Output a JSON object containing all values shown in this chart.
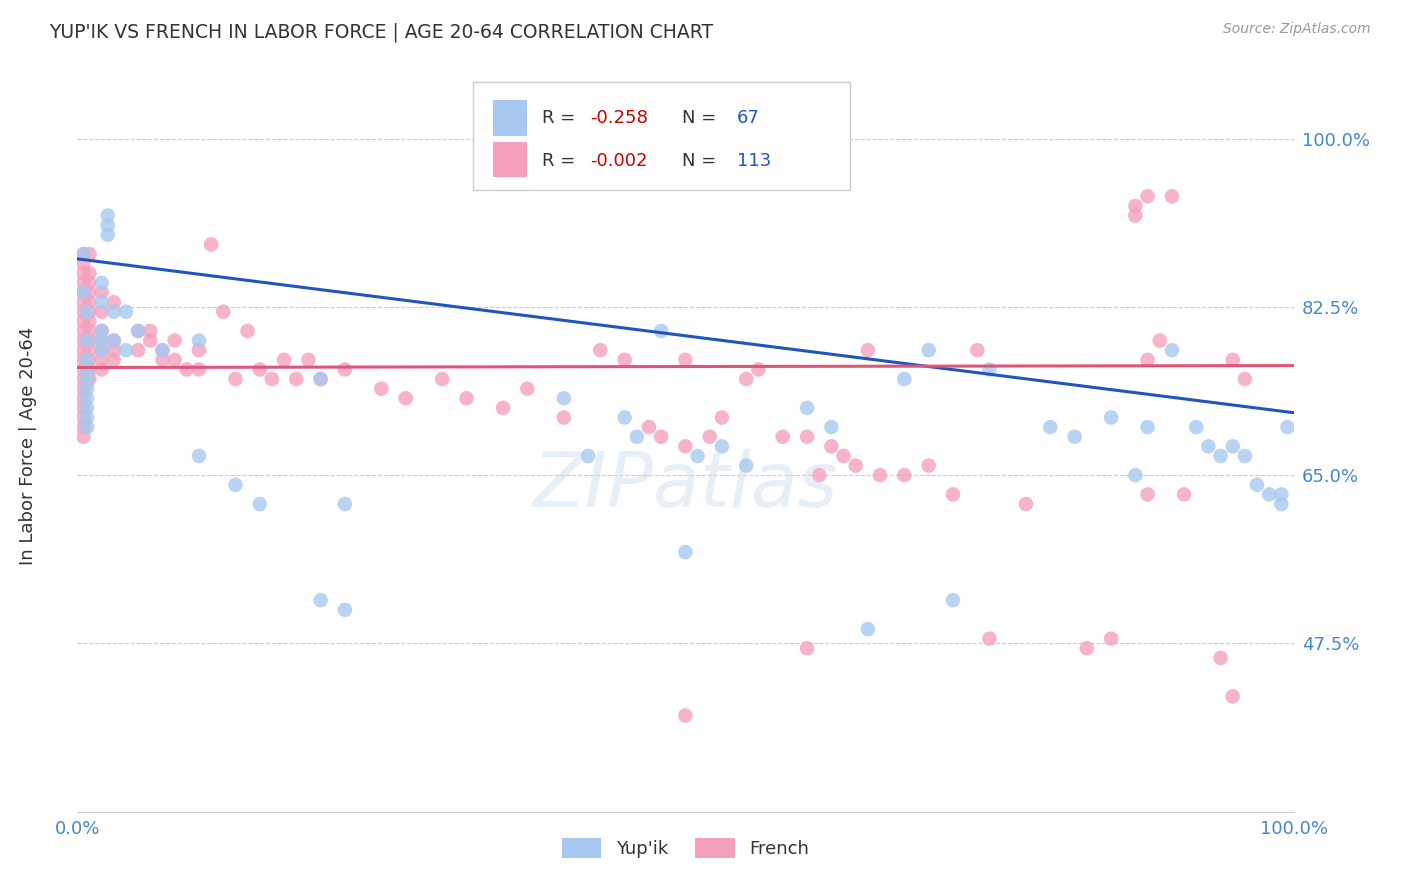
{
  "title": "YUP'IK VS FRENCH IN LABOR FORCE | AGE 20-64 CORRELATION CHART",
  "source": "Source: ZipAtlas.com",
  "ylabel": "In Labor Force | Age 20-64",
  "xlim": [
    0.0,
    1.0
  ],
  "ylim": [
    0.3,
    1.07
  ],
  "yticks": [
    0.475,
    0.65,
    0.825,
    1.0
  ],
  "ytick_labels": [
    "47.5%",
    "65.0%",
    "82.5%",
    "100.0%"
  ],
  "xtick_labels": [
    "0.0%",
    "100.0%"
  ],
  "xticks": [
    0.0,
    1.0
  ],
  "grid_color": "#cccccc",
  "bg_color": "#ffffff",
  "blue_color": "#a8c8f0",
  "pink_color": "#f4a0bc",
  "line_blue": "#2255bb",
  "line_pink": "#e05575",
  "watermark": "ZIPatlas",
  "label_color": "#4488cc",
  "text_dark": "#333333",
  "R_color": "#cc0000",
  "N_color": "#2255bb",
  "blue_scatter": [
    [
      0.005,
      0.88
    ],
    [
      0.005,
      0.84
    ],
    [
      0.008,
      0.82
    ],
    [
      0.008,
      0.79
    ],
    [
      0.008,
      0.77
    ],
    [
      0.008,
      0.76
    ],
    [
      0.008,
      0.75
    ],
    [
      0.008,
      0.74
    ],
    [
      0.008,
      0.73
    ],
    [
      0.008,
      0.72
    ],
    [
      0.008,
      0.71
    ],
    [
      0.008,
      0.7
    ],
    [
      0.02,
      0.85
    ],
    [
      0.02,
      0.83
    ],
    [
      0.02,
      0.8
    ],
    [
      0.02,
      0.79
    ],
    [
      0.02,
      0.78
    ],
    [
      0.025,
      0.92
    ],
    [
      0.025,
      0.91
    ],
    [
      0.025,
      0.9
    ],
    [
      0.03,
      0.82
    ],
    [
      0.03,
      0.79
    ],
    [
      0.04,
      0.82
    ],
    [
      0.04,
      0.78
    ],
    [
      0.05,
      0.8
    ],
    [
      0.07,
      0.78
    ],
    [
      0.1,
      0.79
    ],
    [
      0.1,
      0.67
    ],
    [
      0.13,
      0.64
    ],
    [
      0.15,
      0.62
    ],
    [
      0.2,
      0.75
    ],
    [
      0.22,
      0.62
    ],
    [
      0.4,
      0.73
    ],
    [
      0.42,
      0.67
    ],
    [
      0.45,
      0.71
    ],
    [
      0.46,
      0.69
    ],
    [
      0.48,
      0.8
    ],
    [
      0.5,
      0.57
    ],
    [
      0.51,
      0.67
    ],
    [
      0.53,
      0.68
    ],
    [
      0.55,
      0.66
    ],
    [
      0.6,
      0.72
    ],
    [
      0.62,
      0.7
    ],
    [
      0.65,
      0.49
    ],
    [
      0.68,
      0.75
    ],
    [
      0.7,
      0.78
    ],
    [
      0.72,
      0.52
    ],
    [
      0.75,
      0.76
    ],
    [
      0.8,
      0.7
    ],
    [
      0.82,
      0.69
    ],
    [
      0.85,
      0.71
    ],
    [
      0.87,
      0.65
    ],
    [
      0.88,
      0.7
    ],
    [
      0.9,
      0.78
    ],
    [
      0.92,
      0.7
    ],
    [
      0.93,
      0.68
    ],
    [
      0.94,
      0.67
    ],
    [
      0.95,
      0.68
    ],
    [
      0.96,
      0.67
    ],
    [
      0.97,
      0.64
    ],
    [
      0.98,
      0.63
    ],
    [
      0.99,
      0.63
    ],
    [
      0.99,
      0.62
    ],
    [
      0.995,
      0.7
    ],
    [
      0.2,
      0.52
    ],
    [
      0.22,
      0.51
    ]
  ],
  "pink_scatter": [
    [
      0.005,
      0.88
    ],
    [
      0.005,
      0.87
    ],
    [
      0.005,
      0.86
    ],
    [
      0.005,
      0.85
    ],
    [
      0.005,
      0.84
    ],
    [
      0.005,
      0.83
    ],
    [
      0.005,
      0.82
    ],
    [
      0.005,
      0.81
    ],
    [
      0.005,
      0.8
    ],
    [
      0.005,
      0.79
    ],
    [
      0.005,
      0.78
    ],
    [
      0.005,
      0.77
    ],
    [
      0.005,
      0.76
    ],
    [
      0.005,
      0.75
    ],
    [
      0.005,
      0.74
    ],
    [
      0.005,
      0.73
    ],
    [
      0.005,
      0.72
    ],
    [
      0.005,
      0.71
    ],
    [
      0.005,
      0.7
    ],
    [
      0.005,
      0.69
    ],
    [
      0.01,
      0.88
    ],
    [
      0.01,
      0.86
    ],
    [
      0.01,
      0.85
    ],
    [
      0.01,
      0.84
    ],
    [
      0.01,
      0.83
    ],
    [
      0.01,
      0.82
    ],
    [
      0.01,
      0.81
    ],
    [
      0.01,
      0.8
    ],
    [
      0.01,
      0.79
    ],
    [
      0.01,
      0.78
    ],
    [
      0.01,
      0.77
    ],
    [
      0.01,
      0.76
    ],
    [
      0.01,
      0.75
    ],
    [
      0.02,
      0.84
    ],
    [
      0.02,
      0.82
    ],
    [
      0.02,
      0.8
    ],
    [
      0.02,
      0.79
    ],
    [
      0.02,
      0.78
    ],
    [
      0.02,
      0.77
    ],
    [
      0.02,
      0.76
    ],
    [
      0.03,
      0.83
    ],
    [
      0.03,
      0.79
    ],
    [
      0.03,
      0.78
    ],
    [
      0.03,
      0.77
    ],
    [
      0.05,
      0.8
    ],
    [
      0.05,
      0.78
    ],
    [
      0.06,
      0.8
    ],
    [
      0.06,
      0.79
    ],
    [
      0.07,
      0.78
    ],
    [
      0.07,
      0.77
    ],
    [
      0.08,
      0.79
    ],
    [
      0.08,
      0.77
    ],
    [
      0.09,
      0.76
    ],
    [
      0.1,
      0.78
    ],
    [
      0.1,
      0.76
    ],
    [
      0.11,
      0.89
    ],
    [
      0.12,
      0.82
    ],
    [
      0.13,
      0.75
    ],
    [
      0.14,
      0.8
    ],
    [
      0.15,
      0.76
    ],
    [
      0.16,
      0.75
    ],
    [
      0.17,
      0.77
    ],
    [
      0.18,
      0.75
    ],
    [
      0.19,
      0.77
    ],
    [
      0.2,
      0.75
    ],
    [
      0.22,
      0.76
    ],
    [
      0.25,
      0.74
    ],
    [
      0.27,
      0.73
    ],
    [
      0.3,
      0.75
    ],
    [
      0.32,
      0.73
    ],
    [
      0.35,
      0.72
    ],
    [
      0.37,
      0.74
    ],
    [
      0.4,
      0.71
    ],
    [
      0.43,
      0.78
    ],
    [
      0.45,
      0.77
    ],
    [
      0.47,
      0.7
    ],
    [
      0.48,
      0.69
    ],
    [
      0.5,
      0.68
    ],
    [
      0.5,
      0.77
    ],
    [
      0.52,
      0.69
    ],
    [
      0.53,
      0.71
    ],
    [
      0.55,
      0.75
    ],
    [
      0.56,
      0.76
    ],
    [
      0.58,
      0.69
    ],
    [
      0.6,
      0.69
    ],
    [
      0.61,
      0.65
    ],
    [
      0.62,
      0.68
    ],
    [
      0.63,
      0.67
    ],
    [
      0.64,
      0.66
    ],
    [
      0.65,
      0.78
    ],
    [
      0.66,
      0.65
    ],
    [
      0.68,
      0.65
    ],
    [
      0.7,
      0.66
    ],
    [
      0.72,
      0.63
    ],
    [
      0.74,
      0.78
    ],
    [
      0.75,
      0.48
    ],
    [
      0.78,
      0.62
    ],
    [
      0.83,
      0.47
    ],
    [
      0.85,
      0.48
    ],
    [
      0.87,
      0.93
    ],
    [
      0.87,
      0.92
    ],
    [
      0.88,
      0.94
    ],
    [
      0.88,
      0.77
    ],
    [
      0.88,
      0.63
    ],
    [
      0.89,
      0.79
    ],
    [
      0.9,
      0.94
    ],
    [
      0.91,
      0.63
    ],
    [
      0.94,
      0.46
    ],
    [
      0.95,
      0.42
    ],
    [
      0.95,
      0.77
    ],
    [
      0.96,
      0.75
    ],
    [
      0.5,
      0.4
    ],
    [
      0.6,
      0.47
    ]
  ],
  "blue_line_x": [
    0.0,
    1.0
  ],
  "blue_line_y": [
    0.875,
    0.715
  ],
  "pink_line_x": [
    0.0,
    1.0
  ],
  "pink_line_y": [
    0.762,
    0.764
  ]
}
